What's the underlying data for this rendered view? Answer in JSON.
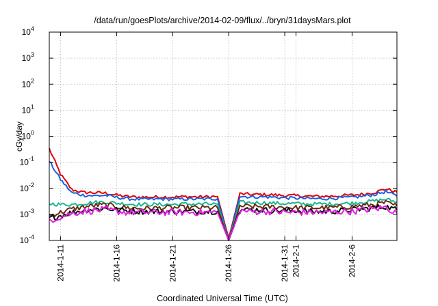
{
  "chart_data": {
    "type": "line",
    "title": "/data/run/goesPlots/archive/2014-02-09/flux/../bryn/31daysMars.plot",
    "xlabel": "Coordinated Universal Time (UTC)",
    "ylabel": "cGy/day",
    "yscale": "log",
    "ylim": [
      0.0001,
      10000
    ],
    "yticks": [
      {
        "exp": "-4",
        "value": 0.0001
      },
      {
        "exp": "-3",
        "value": 0.001
      },
      {
        "exp": "-2",
        "value": 0.01
      },
      {
        "exp": "-1",
        "value": 0.1
      },
      {
        "exp": "0",
        "value": 1
      },
      {
        "exp": "1",
        "value": 10
      },
      {
        "exp": "2",
        "value": 100
      },
      {
        "exp": "3",
        "value": 1000
      },
      {
        "exp": "4",
        "value": 10000
      }
    ],
    "xlim": [
      "2014-01-10",
      "2014-02-10"
    ],
    "xticks": [
      {
        "label": "2014-1-11",
        "date": "2014-01-11"
      },
      {
        "label": "2014-1-16",
        "date": "2014-01-16"
      },
      {
        "label": "2014-1-21",
        "date": "2014-01-21"
      },
      {
        "label": "2014-1-26",
        "date": "2014-01-26"
      },
      {
        "label": "2014-1-31",
        "date": "2014-01-31"
      },
      {
        "label": "2014-2-1",
        "date": "2014-02-01"
      },
      {
        "label": "2014-2-6",
        "date": "2014-02-06"
      }
    ],
    "grid": true,
    "legend": "none",
    "x": [
      "2014-01-10",
      "2014-01-11",
      "2014-01-12",
      "2014-01-13",
      "2014-01-14",
      "2014-01-15",
      "2014-01-16",
      "2014-01-17",
      "2014-01-18",
      "2014-01-19",
      "2014-01-20",
      "2014-01-21",
      "2014-01-22",
      "2014-01-23",
      "2014-01-24",
      "2014-01-25",
      "2014-01-26",
      "2014-01-27",
      "2014-01-28",
      "2014-01-29",
      "2014-01-30",
      "2014-01-31",
      "2014-02-01",
      "2014-02-02",
      "2014-02-03",
      "2014-02-04",
      "2014-02-05",
      "2014-02-06",
      "2014-02-07",
      "2014-02-08",
      "2014-02-09",
      "2014-02-10"
    ],
    "series": [
      {
        "color": "#e00000",
        "values": [
          0.33,
          0.035,
          0.009,
          0.007,
          0.0068,
          0.0066,
          0.0055,
          0.0048,
          0.0046,
          0.0046,
          0.0047,
          0.0046,
          0.0048,
          0.0047,
          0.0047,
          0.0049,
          0.00012,
          0.0062,
          0.0058,
          0.0058,
          0.0056,
          0.0053,
          0.0052,
          0.005,
          0.0049,
          0.005,
          0.0052,
          0.0055,
          0.006,
          0.007,
          0.0095,
          0.0072
        ]
      },
      {
        "color": "#1560e8",
        "values": [
          0.11,
          0.022,
          0.0068,
          0.0055,
          0.0052,
          0.0054,
          0.0045,
          0.004,
          0.0038,
          0.0038,
          0.0039,
          0.0038,
          0.0039,
          0.0039,
          0.0039,
          0.004,
          0.0001,
          0.005,
          0.0047,
          0.0047,
          0.0046,
          0.0043,
          0.0042,
          0.0041,
          0.004,
          0.0041,
          0.0043,
          0.0045,
          0.005,
          0.0058,
          0.0075,
          0.005
        ]
      },
      {
        "color": "#16b890",
        "values": [
          0.0026,
          0.0024,
          0.0024,
          0.0026,
          0.0029,
          0.003,
          0.0027,
          0.0025,
          0.0024,
          0.0024,
          0.0024,
          0.0024,
          0.0025,
          0.0025,
          0.0025,
          0.0025,
          0.0001,
          0.0029,
          0.0028,
          0.0028,
          0.0027,
          0.0026,
          0.0026,
          0.0025,
          0.0025,
          0.0025,
          0.0026,
          0.0027,
          0.003,
          0.0033,
          0.0038,
          0.003
        ]
      },
      {
        "color": "#6a2c10",
        "values": [
          0.0009,
          0.0012,
          0.0016,
          0.0019,
          0.0022,
          0.0023,
          0.002,
          0.0018,
          0.0017,
          0.0017,
          0.0018,
          0.0018,
          0.0018,
          0.0018,
          0.0018,
          0.0018,
          0.0001,
          0.0021,
          0.002,
          0.002,
          0.0019,
          0.0019,
          0.0018,
          0.0018,
          0.0018,
          0.0018,
          0.0019,
          0.002,
          0.0022,
          0.0024,
          0.0028,
          0.0021
        ]
      },
      {
        "color": "#0a0a0a",
        "values": [
          0.0007,
          0.0009,
          0.0012,
          0.0014,
          0.0016,
          0.0017,
          0.0015,
          0.0014,
          0.0013,
          0.0013,
          0.0013,
          0.0013,
          0.0013,
          0.0013,
          0.0013,
          0.0013,
          0.0001,
          0.0015,
          0.0015,
          0.0015,
          0.0014,
          0.0014,
          0.0014,
          0.0013,
          0.0013,
          0.0013,
          0.0014,
          0.0015,
          0.0016,
          0.0018,
          0.002,
          0.0015
        ]
      },
      {
        "color": "#e020e0",
        "values": [
          0.0006,
          0.0008,
          0.0011,
          0.0013,
          0.0014,
          0.0015,
          0.0013,
          0.0012,
          0.0012,
          0.0012,
          0.0012,
          0.0012,
          0.0012,
          0.0012,
          0.0012,
          0.0012,
          0.0001,
          0.0014,
          0.0013,
          0.0013,
          0.0013,
          0.0012,
          0.0012,
          0.0012,
          0.0012,
          0.0012,
          0.0013,
          0.0013,
          0.0015,
          0.0016,
          0.0019,
          0.0011
        ]
      }
    ]
  }
}
